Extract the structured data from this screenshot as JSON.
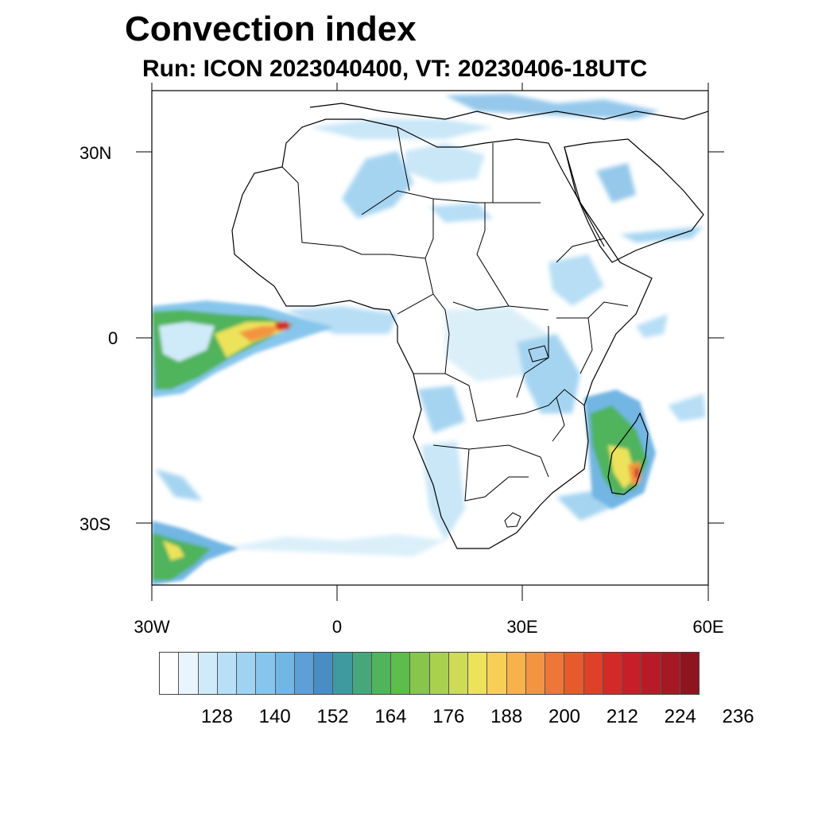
{
  "title": "Convection index",
  "subtitle": "Run: ICON 2023040400,  VT: 20230406-18UTC",
  "axes": {
    "lat_labels": [
      "30N",
      "0",
      "30S"
    ],
    "lon_labels": [
      "30W",
      "0",
      "30E",
      "60E"
    ]
  },
  "map_extent": {
    "lon_min": -30,
    "lon_max": 60,
    "lat_min": -40,
    "lat_max": 40
  },
  "colorbar": {
    "colors": [
      "#ffffff",
      "#e8f5fc",
      "#cfeaf8",
      "#b7dff5",
      "#9fd3f2",
      "#87c6ec",
      "#72b6e4",
      "#5d9fd6",
      "#4a8cc4",
      "#3f9aa0",
      "#46a77a",
      "#4fb45b",
      "#5dbd4a",
      "#86c64b",
      "#aad14e",
      "#cddb55",
      "#ece35a",
      "#f8cf55",
      "#f6b24b",
      "#f39441",
      "#ee7636",
      "#e75a2e",
      "#df4128",
      "#d42a27",
      "#c61f2a",
      "#b71b27",
      "#a51824",
      "#8e1520"
    ],
    "tick_labels": [
      "128",
      "140",
      "152",
      "164",
      "176",
      "188",
      "200",
      "212",
      "224",
      "236"
    ]
  },
  "colors": {
    "low": "#9fd3f2",
    "mid": "#5d9fd6",
    "green": "#4fb45b",
    "yellow": "#ece35a",
    "orange": "#f39441",
    "red": "#d42a27"
  }
}
